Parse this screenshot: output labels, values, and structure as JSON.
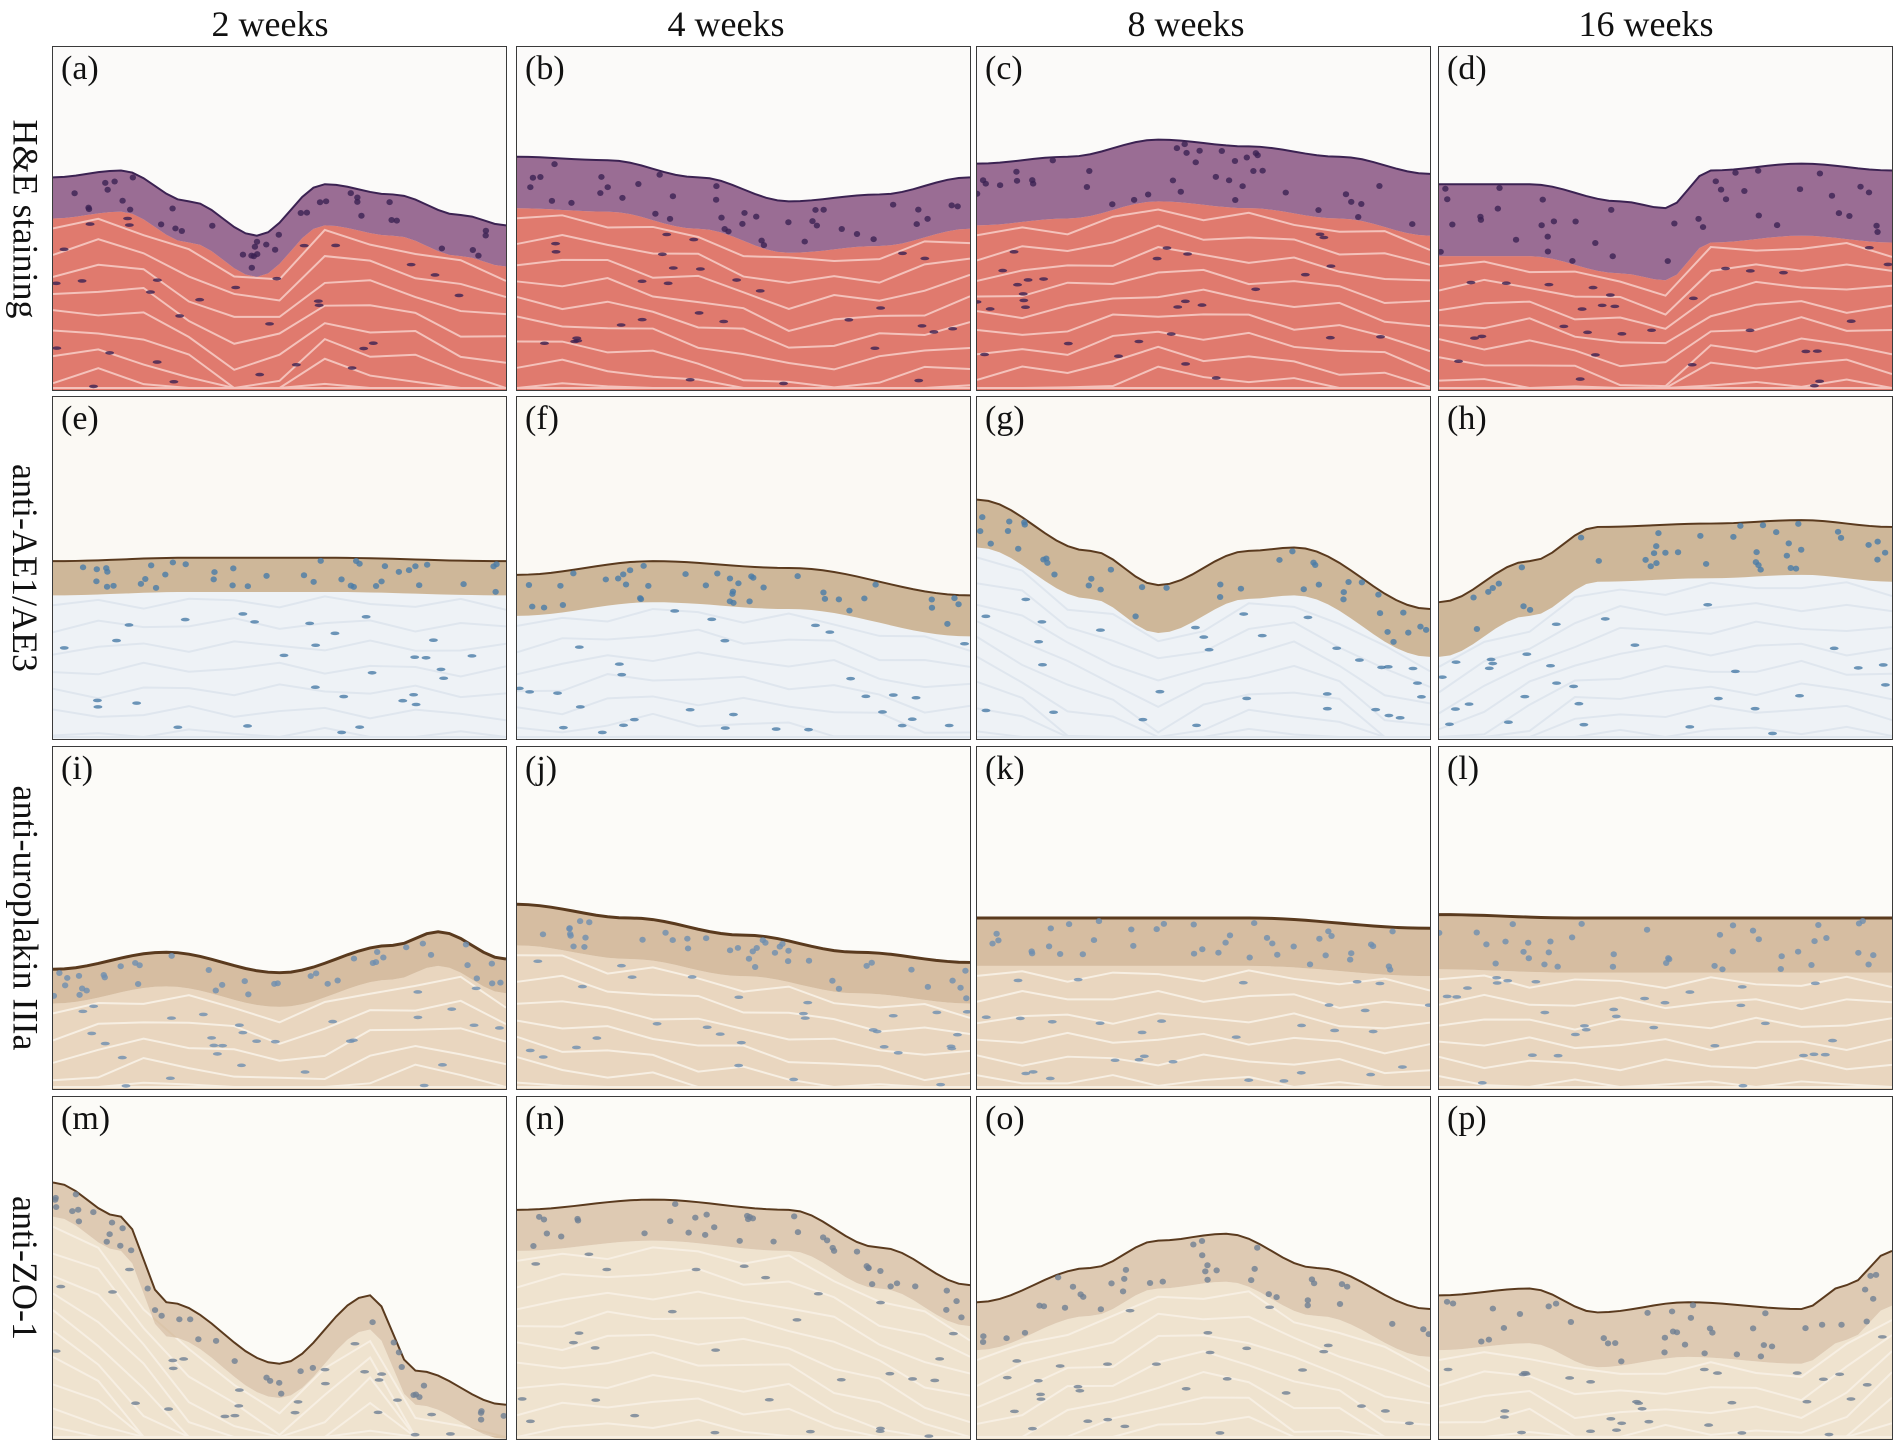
{
  "columns": [
    "2 weeks",
    "4 weeks",
    "8 weeks",
    "16 weeks"
  ],
  "rows": [
    {
      "label": "H&E staining",
      "stain": "he"
    },
    {
      "label": "anti-AE1/AE3",
      "stain": "ae"
    },
    {
      "label": "anti-uroplakin IIIa",
      "stain": "up"
    },
    {
      "label": "anti-ZO-1",
      "stain": "zo"
    }
  ],
  "panels": [
    {
      "label": "(a)"
    },
    {
      "label": "(b)"
    },
    {
      "label": "(c)"
    },
    {
      "label": "(d)"
    },
    {
      "label": "(e)"
    },
    {
      "label": "(f)"
    },
    {
      "label": "(g)"
    },
    {
      "label": "(h)"
    },
    {
      "label": "(i)"
    },
    {
      "label": "(j)"
    },
    {
      "label": "(k)"
    },
    {
      "label": "(l)"
    },
    {
      "label": "(m)"
    },
    {
      "label": "(n)"
    },
    {
      "label": "(o)"
    },
    {
      "label": "(p)"
    }
  ],
  "stain_colors": {
    "he": {
      "bg": "#fbfaf9",
      "stroma": "#e07a6e",
      "epi": "#7a3d72",
      "nuclei": "#3b2252"
    },
    "ae": {
      "bg": "#fbf9f4",
      "stroma": "#eef2f6",
      "epi": "#a9814f",
      "nuclei": "#4a7ca8"
    },
    "up": {
      "bg": "#fcfbf8",
      "stroma": "#e9d6bf",
      "epi": "#b68a5a",
      "nuclei": "#6e8fb0"
    },
    "zo": {
      "bg": "#fcfbf7",
      "stroma": "#efe3cf",
      "epi": "#c4a27c",
      "nuclei": "#6f7f94"
    }
  }
}
